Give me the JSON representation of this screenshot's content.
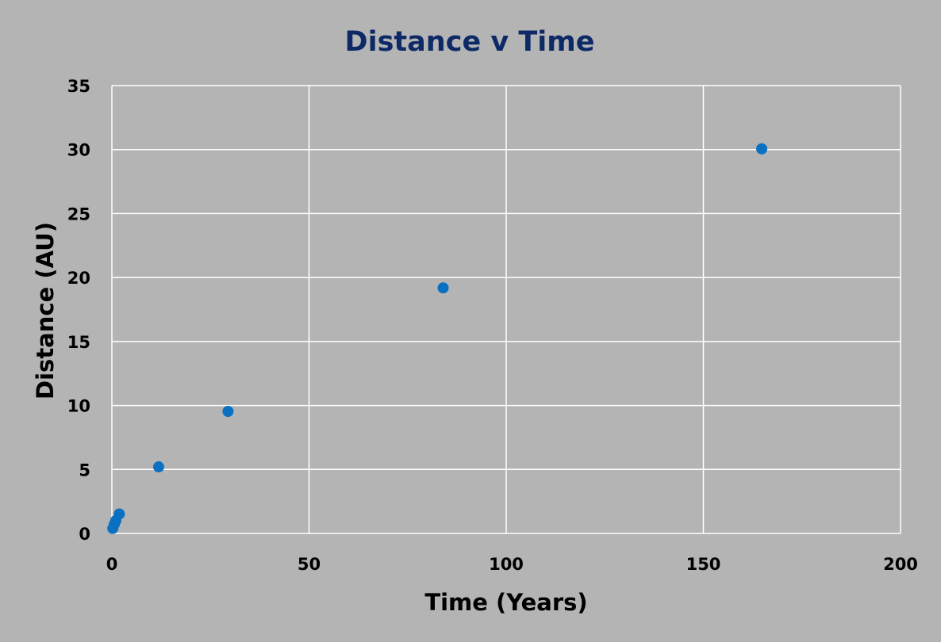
{
  "chart_data": {
    "type": "scatter",
    "title": "Distance v Time",
    "xlabel": "Time (Years)",
    "ylabel": "Distance (AU)",
    "xlim": [
      0,
      200
    ],
    "ylim": [
      0,
      35
    ],
    "xticks": [
      0,
      50,
      100,
      150,
      200
    ],
    "yticks": [
      0,
      5,
      10,
      15,
      20,
      25,
      30,
      35
    ],
    "grid": true,
    "series": [
      {
        "color": "#0a70c2",
        "points": [
          {
            "x": 0.24,
            "y": 0.39
          },
          {
            "x": 0.62,
            "y": 0.72
          },
          {
            "x": 1.0,
            "y": 1.0
          },
          {
            "x": 1.88,
            "y": 1.52
          },
          {
            "x": 11.86,
            "y": 5.2
          },
          {
            "x": 29.46,
            "y": 9.54
          },
          {
            "x": 84.01,
            "y": 19.19
          },
          {
            "x": 164.8,
            "y": 30.06
          }
        ]
      }
    ]
  }
}
